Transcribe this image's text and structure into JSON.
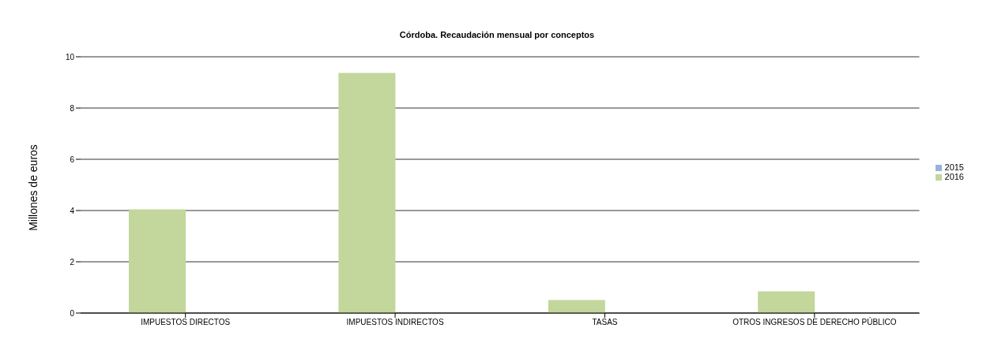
{
  "chart_data": {
    "type": "bar",
    "title": "Córdoba. Recaudación mensual por conceptos",
    "ylabel": "Millones de euros",
    "categories": [
      "IMPUESTOS DIRECTOS",
      "IMPUESTOS INDIRECTOS",
      "TASAS",
      "OTROS INGRESOS DE DERECHO PÚBLICO"
    ],
    "series": [
      {
        "name": "2016",
        "color": "#c3d69b",
        "values": [
          4.05,
          9.37,
          0.51,
          0.85
        ]
      },
      {
        "name": "2015",
        "color": "#95b3d7",
        "values": [
          0,
          0,
          0,
          0
        ]
      }
    ],
    "ylim": [
      0,
      10
    ],
    "yticks": [
      0,
      2,
      4,
      6,
      8,
      10
    ],
    "grid": "y",
    "legend": "right"
  }
}
